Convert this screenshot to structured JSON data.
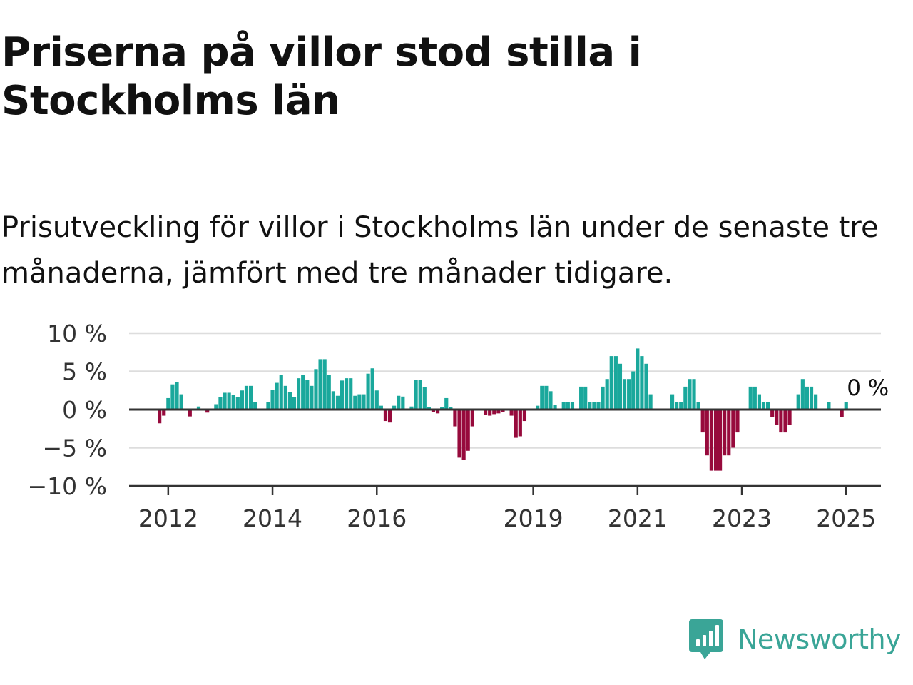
{
  "title": "Priserna på villor stod stilla i Stockholms län",
  "subtitle": "Prisutveckling för villor i Stockholms län under de senaste tre månaderna, jämfört med tre månader tidigare.",
  "logo_text": "Newsworthy",
  "colors": {
    "positive": "#1aa89c",
    "negative": "#970a3c",
    "grid": "#dddddd",
    "axis": "#333333",
    "text": "#111111",
    "brand": "#3aa597"
  },
  "chart_data": {
    "type": "bar",
    "title": "Priserna på villor stod stilla i Stockholms län",
    "subtitle": "Prisutveckling för villor i Stockholms län under de senaste tre månaderna, jämfört med tre månader tidigare.",
    "xlabel": "",
    "ylabel": "",
    "ylim": [
      -10,
      10
    ],
    "yticks": [
      10,
      5,
      0,
      -5,
      -10
    ],
    "ytick_labels": [
      "10 %",
      "5 %",
      "0 %",
      "−5 %",
      "−10 %"
    ],
    "xlim": [
      "2011-04",
      "2025-09"
    ],
    "xticks": [
      "2012-01",
      "2014-01",
      "2016-01",
      "2019-01",
      "2021-01",
      "2023-01",
      "2025-01"
    ],
    "xtick_labels": [
      "2012",
      "2014",
      "2016",
      "2019",
      "2021",
      "2023",
      "2025"
    ],
    "grid": true,
    "start": "2011-11",
    "frequency": "monthly",
    "values": [
      -1.8,
      -0.8,
      1.5,
      3.3,
      3.6,
      2.0,
      0,
      -0.9,
      0,
      0.4,
      0,
      -0.4,
      0,
      0.7,
      1.6,
      2.2,
      2.2,
      1.9,
      1.6,
      2.5,
      3.1,
      3.1,
      1.0,
      0,
      0,
      1.0,
      2.6,
      3.5,
      4.5,
      3.1,
      2.3,
      1.6,
      4.1,
      4.5,
      3.9,
      3.1,
      5.3,
      6.6,
      6.6,
      4.5,
      2.4,
      1.8,
      3.8,
      4.1,
      4.1,
      1.8,
      2.0,
      2.0,
      4.7,
      5.4,
      2.5,
      0.5,
      -1.5,
      -1.7,
      0.5,
      1.8,
      1.7,
      0,
      0.4,
      3.9,
      3.9,
      2.9,
      0.3,
      -0.3,
      -0.5,
      0.3,
      1.5,
      0.3,
      -2.2,
      -6.3,
      -6.6,
      -5.4,
      -2.2,
      0,
      0,
      -0.7,
      -0.8,
      -0.6,
      -0.5,
      -0.3,
      0,
      -0.8,
      -3.7,
      -3.5,
      -1.5,
      0,
      0,
      0.5,
      3.1,
      3.1,
      2.4,
      0.6,
      0,
      1.0,
      1.0,
      1.0,
      0,
      3.0,
      3.0,
      1.0,
      1.0,
      1.0,
      3.0,
      4.0,
      7.0,
      7.0,
      6.0,
      4.0,
      4.0,
      5.0,
      8.0,
      7.0,
      6.0,
      2.0,
      0,
      0,
      0,
      0,
      2.0,
      1.0,
      1.0,
      3.0,
      4.0,
      4.0,
      1.0,
      -3.0,
      -6.0,
      -8.0,
      -8.0,
      -8.0,
      -6.0,
      -6.0,
      -5.0,
      -3.0,
      0,
      0,
      3.0,
      3.0,
      2.0,
      1.0,
      1.0,
      -1.0,
      -2.0,
      -3.0,
      -3.0,
      -2.0,
      0,
      2.0,
      4.0,
      3.0,
      3.0,
      2.0,
      0,
      0,
      1.0,
      0,
      0,
      -1.0,
      1.0
    ],
    "annotations": [
      {
        "text": "0 %",
        "date": "2025-06",
        "value": 0
      }
    ]
  }
}
